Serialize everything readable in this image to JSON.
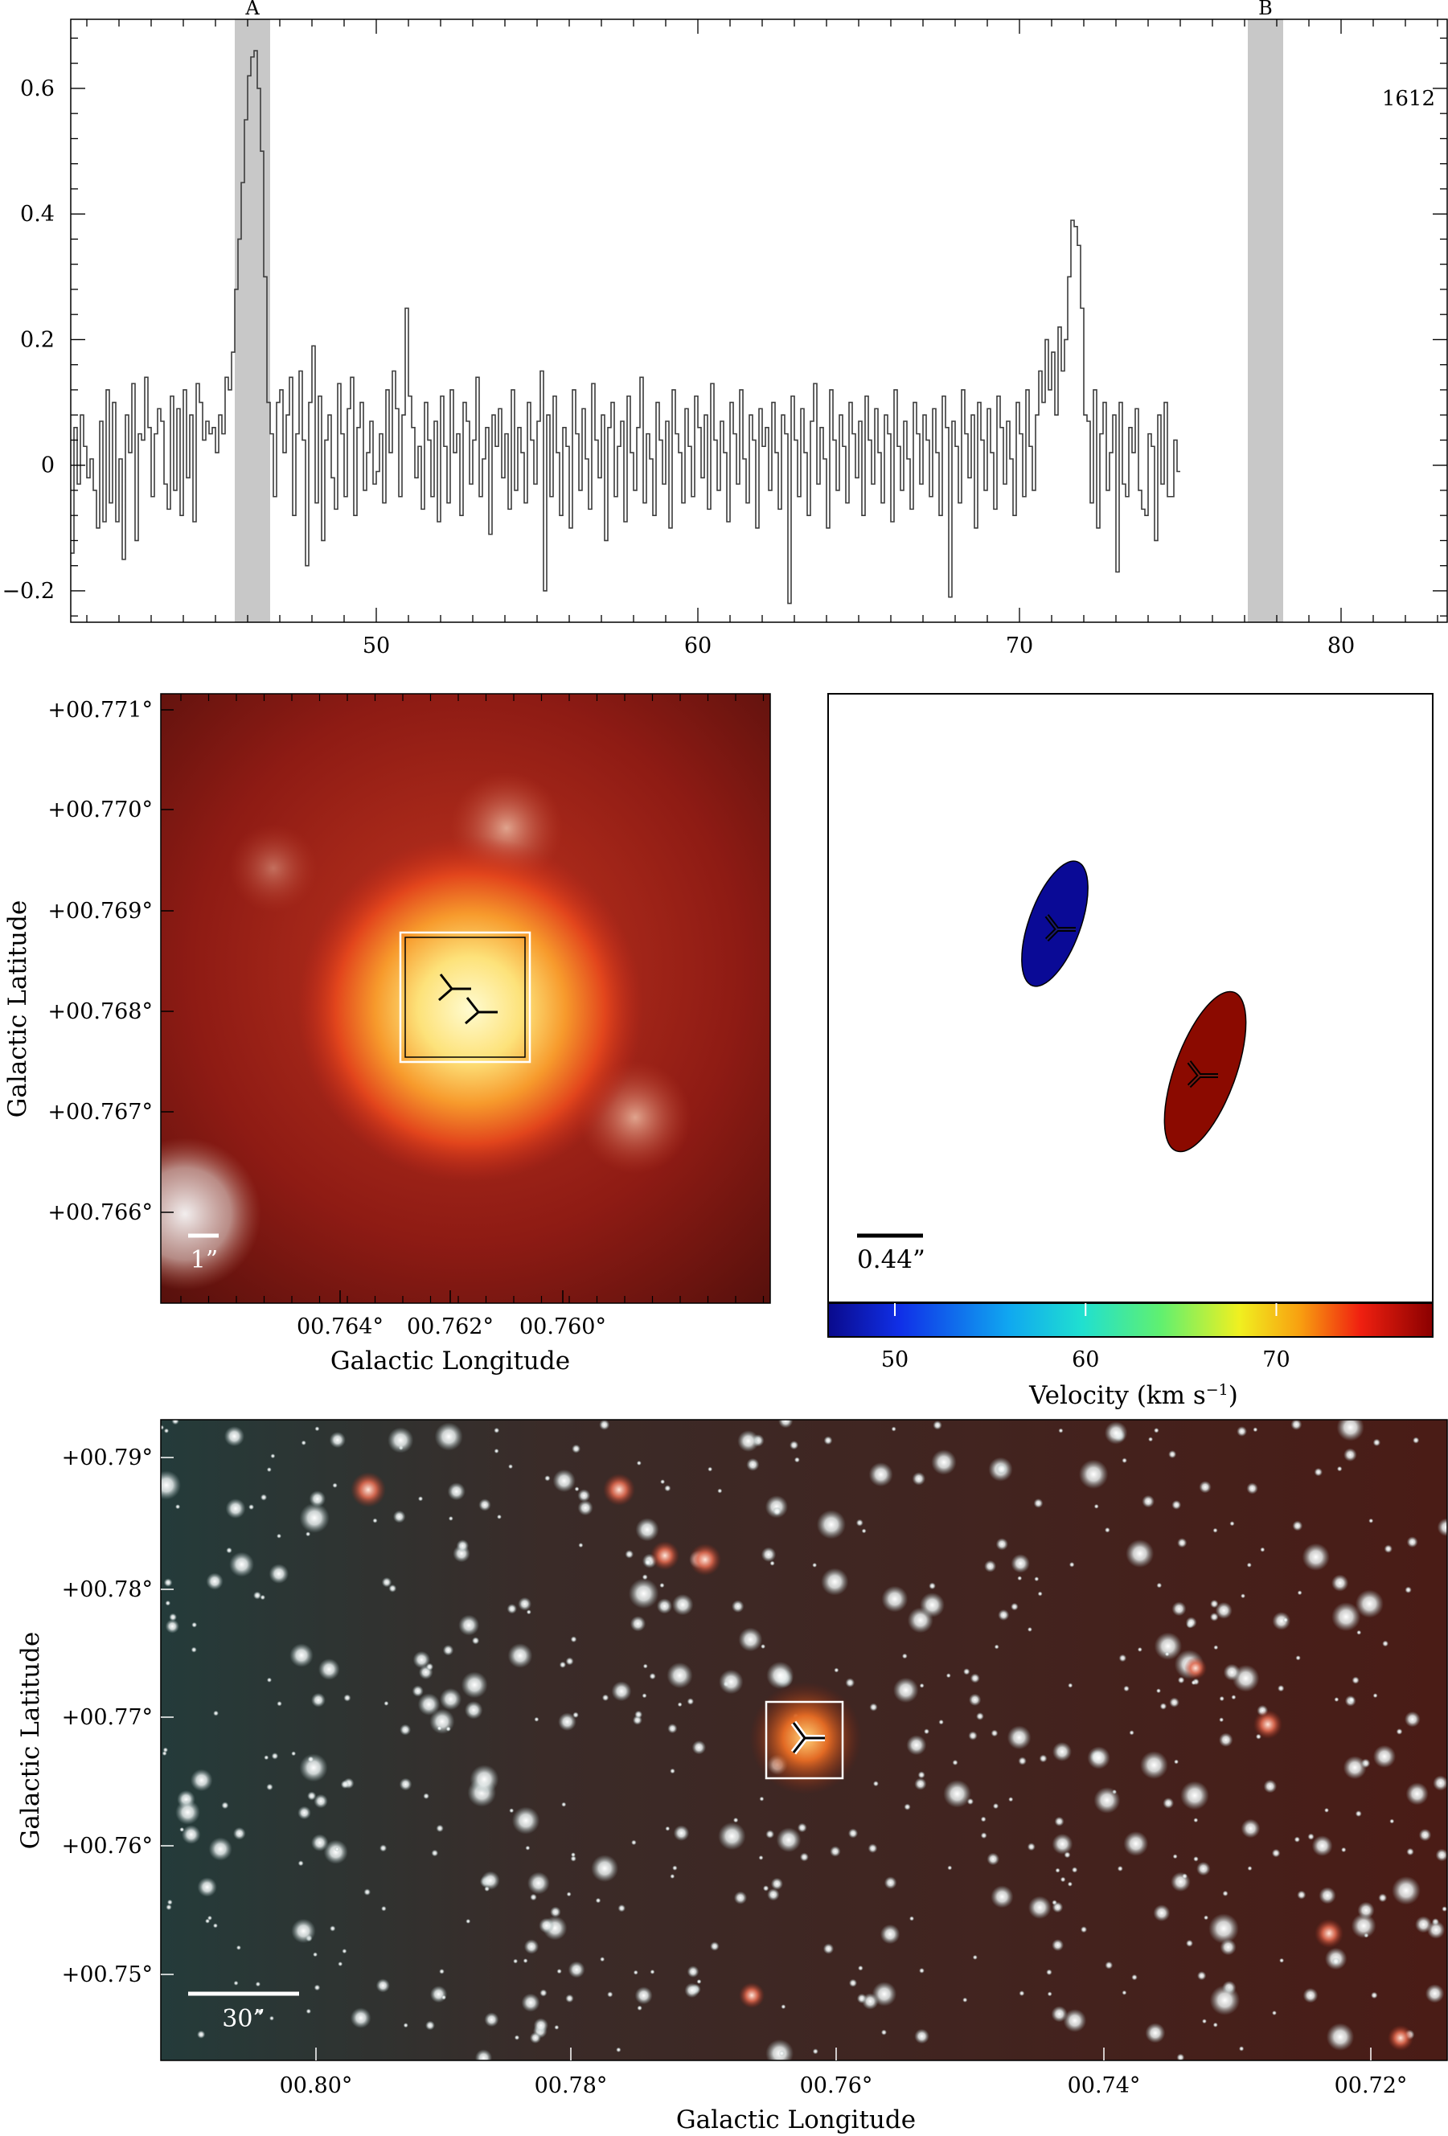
{
  "spectrum": {
    "line_label": "1612",
    "features": [
      {
        "label": "A",
        "vmin": 45.6,
        "vmax": 46.7
      },
      {
        "label": "B",
        "vmin": 77.1,
        "vmax": 78.2
      }
    ],
    "xlim": [
      40.5,
      83.3
    ],
    "ylim": [
      -0.25,
      0.71
    ],
    "xticks": [
      50,
      60,
      70,
      80
    ],
    "yticks": [
      -0.2,
      0,
      0.2,
      0.4,
      0.6
    ],
    "ytick_labels": [
      "−0.2",
      "0",
      "0.2",
      "0.4",
      "0.6"
    ],
    "colors": {
      "band": "#c8c8c8",
      "line": "#3c3c3c"
    }
  },
  "zoom_image": {
    "xlabel": "Galactic Longitude",
    "ylabel": "Galactic Latitude",
    "xticks": [
      "00.764°",
      "00.762°",
      "00.760°"
    ],
    "yticks": [
      "+00.771°",
      "+00.770°",
      "+00.769°",
      "+00.768°",
      "+00.767°",
      "+00.766°"
    ],
    "scalebar_label": "1”"
  },
  "maser_map": {
    "scalebar_label": "0.44”",
    "colorbar_label": "Velocity (km s",
    "colorbar_unit_exp": "−1",
    "colorbar_close": ")",
    "colorbar_ticks": [
      50,
      60,
      70
    ],
    "colorbar_range": [
      46.5,
      78.2
    ],
    "spots": [
      {
        "velocity": 46.2,
        "color": "#0a0a96"
      },
      {
        "velocity": 77.6,
        "color": "#8b0a00"
      }
    ]
  },
  "wide_image": {
    "xlabel": "Galactic Longitude",
    "ylabel": "Galactic Latitude",
    "xticks": [
      "00.80°",
      "00.78°",
      "00.76°",
      "00.74°",
      "00.72°"
    ],
    "yticks": [
      "+00.79°",
      "+00.78°",
      "+00.77°",
      "+00.76°",
      "+00.75°"
    ],
    "scalebar_label": "30”"
  },
  "chart_data": [
    {
      "type": "line",
      "title": "",
      "xlabel": "",
      "ylabel": "",
      "annotation": "1612",
      "xlim": [
        40.5,
        83.3
      ],
      "ylim": [
        -0.25,
        0.71
      ],
      "grid": false,
      "series": [
        {
          "x_start": 40.5,
          "x_step": 0.1,
          "values": [
            -0.14,
            0.06,
            -0.03,
            0.08,
            0.03,
            -0.02,
            0.01,
            -0.04,
            -0.1,
            0.07,
            -0.09,
            0.12,
            -0.06,
            0.1,
            -0.09,
            0.01,
            -0.15,
            0.08,
            0.02,
            0.13,
            -0.12,
            0.05,
            0.04,
            0.14,
            0.06,
            -0.05,
            0.05,
            0.09,
            0.07,
            -0.03,
            -0.07,
            0.11,
            -0.04,
            0.09,
            -0.08,
            0.12,
            -0.02,
            0.08,
            -0.09,
            0.13,
            0.1,
            0.04,
            0.07,
            0.05,
            0.06,
            0.02,
            0.08,
            0.05,
            0.14,
            0.12,
            0.18,
            0.28,
            0.36,
            0.45,
            0.55,
            0.62,
            0.65,
            0.66,
            0.6,
            0.5,
            0.3,
            0.1,
            0.05,
            -0.05,
            0.1,
            0.12,
            0.02,
            0.08,
            0.14,
            -0.08,
            0.05,
            0.15,
            0.04,
            -0.16,
            0.1,
            0.19,
            -0.06,
            0.11,
            -0.12,
            0.04,
            0.08,
            -0.02,
            -0.07,
            0.13,
            0.05,
            -0.05,
            0.09,
            0.14,
            -0.08,
            0.06,
            0.1,
            -0.04,
            0.02,
            0.07,
            -0.03,
            -0.01,
            0.05,
            -0.06,
            0.12,
            0.02,
            0.15,
            0.09,
            -0.05,
            0.08,
            0.25,
            0.11,
            0.06,
            -0.02,
            0.03,
            -0.07,
            0.1,
            0.04,
            -0.05,
            0.07,
            -0.09,
            0.11,
            0.03,
            -0.06,
            0.12,
            0.02,
            0.05,
            -0.08,
            0.1,
            0.07,
            -0.03,
            0.04,
            0.14,
            -0.05,
            0.01,
            0.06,
            -0.11,
            0.08,
            0.03,
            0.09,
            -0.02,
            0.05,
            -0.07,
            0.12,
            -0.04,
            0.06,
            0.02,
            -0.06,
            0.1,
            0.04,
            -0.03,
            0.07,
            0.15,
            -0.2,
            0.08,
            -0.05,
            0.11,
            0.02,
            -0.08,
            0.06,
            0.03,
            -0.1,
            0.12,
            0.05,
            -0.04,
            0.09,
            0.01,
            -0.07,
            0.13,
            0.04,
            -0.02,
            0.08,
            -0.12,
            0.06,
            0.1,
            -0.05,
            0.03,
            0.07,
            -0.09,
            0.11,
            0.02,
            -0.04,
            0.06,
            0.14,
            -0.06,
            0.05,
            0.01,
            -0.08,
            0.1,
            0.04,
            -0.03,
            0.07,
            -0.1,
            0.12,
            0.05,
            0.02,
            -0.06,
            0.09,
            0.03,
            -0.05,
            0.11,
            0.06,
            -0.02,
            0.08,
            -0.07,
            0.13,
            0.04,
            -0.04,
            0.07,
            0.02,
            -0.09,
            0.1,
            0.05,
            -0.03,
            0.12,
            0.01,
            -0.06,
            0.08,
            0.04,
            -0.1,
            0.09,
            0.03,
            0.06,
            -0.04,
            0.1,
            0.02,
            -0.07,
            0.08,
            0.05,
            -0.22,
            0.11,
            0.04,
            -0.05,
            0.09,
            0.02,
            -0.08,
            0.07,
            0.13,
            -0.03,
            0.06,
            0.01,
            -0.1,
            0.12,
            0.04,
            -0.04,
            0.08,
            0.03,
            -0.06,
            0.1,
            0.05,
            -0.02,
            0.07,
            -0.08,
            0.11,
            0.04,
            -0.03,
            0.09,
            0.02,
            -0.06,
            0.08,
            0.05,
            -0.09,
            0.12,
            0.03,
            -0.04,
            0.07,
            0.01,
            -0.07,
            0.1,
            0.05,
            -0.03,
            0.08,
            0.04,
            -0.05,
            0.09,
            0.02,
            -0.08,
            0.11,
            0.06,
            -0.21,
            0.07,
            0.03,
            -0.06,
            0.12,
            0.05,
            -0.02,
            0.08,
            -0.1,
            0.1,
            0.04,
            -0.04,
            0.09,
            0.02,
            -0.07,
            0.11,
            0.06,
            -0.03,
            0.07,
            0.01,
            -0.08,
            0.1,
            0.05,
            -0.05,
            0.12,
            0.03,
            -0.04,
            0.08,
            0.15,
            0.1,
            0.2,
            0.12,
            0.18,
            0.08,
            0.22,
            0.15,
            0.2,
            0.3,
            0.39,
            0.38,
            0.35,
            0.25,
            0.08,
            0.07,
            -0.06,
            0.12,
            -0.1,
            0.05,
            0.1,
            -0.04,
            0.02,
            0.08,
            -0.17,
            0.1,
            -0.03,
            -0.05,
            0.06,
            0.02,
            0.09,
            -0.04,
            -0.07,
            -0.08,
            0.05,
            0.03,
            -0.12,
            0.08,
            -0.03,
            0.1,
            -0.05,
            -0.05,
            0.04,
            -0.01
          ]
        }
      ]
    },
    {
      "type": "scatter",
      "title": "",
      "xlabel": "",
      "ylabel": "",
      "colorbar": {
        "label": "Velocity (km s−1)",
        "ticks": [
          50,
          60,
          70
        ],
        "range": [
          46.5,
          78.2
        ]
      },
      "series": [
        {
          "velocity": 46.2
        },
        {
          "velocity": 77.6
        }
      ]
    }
  ]
}
